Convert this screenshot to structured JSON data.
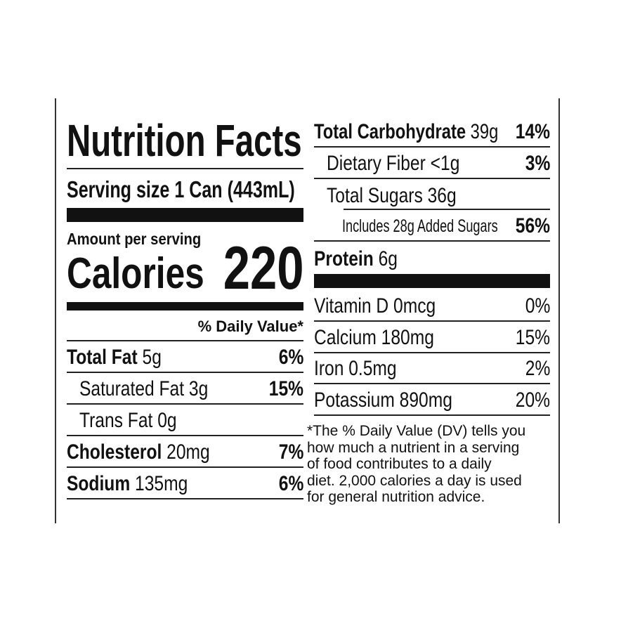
{
  "title": "Nutrition Facts",
  "serving_size": "Serving size 1 Can (443mL)",
  "amount_per_serving": "Amount per serving",
  "calories_label": "Calories",
  "calories_value": "220",
  "daily_value_header": "% Daily Value*",
  "left_rows": [
    {
      "name": "Total Fat",
      "amount": "5g",
      "dv": "6%"
    },
    {
      "name": "Saturated Fat",
      "amount": "3g",
      "dv": "15%"
    },
    {
      "name": "Trans Fat",
      "amount": "0g",
      "dv": ""
    },
    {
      "name": "Cholesterol",
      "amount": "20mg",
      "dv": "7%"
    },
    {
      "name": "Sodium",
      "amount": "135mg",
      "dv": "6%"
    }
  ],
  "right_rows": [
    {
      "name": "Total Carbohydrate",
      "amount": "39g",
      "dv": "14%"
    },
    {
      "name": "Dietary Fiber",
      "amount": "<1g",
      "dv": "3%"
    },
    {
      "name": "Total Sugars",
      "amount": "36g",
      "dv": ""
    },
    {
      "name": "Includes 28g Added Sugars",
      "amount": "",
      "dv": "56%"
    },
    {
      "name": "Protein",
      "amount": "6g",
      "dv": ""
    }
  ],
  "micronutrients": [
    {
      "name": "Vitamin D 0mcg",
      "dv": "0%"
    },
    {
      "name": "Calcium 180mg",
      "dv": "15%"
    },
    {
      "name": "Iron 0.5mg",
      "dv": "2%"
    },
    {
      "name": "Potassium 890mg",
      "dv": "20%"
    }
  ],
  "footnote": "*The % Daily Value (DV) tells you\nhow much a nutrient in a serving\nof food contributes to a daily\ndiet. 2,000 calories a day is used\nfor general nutrition advice."
}
